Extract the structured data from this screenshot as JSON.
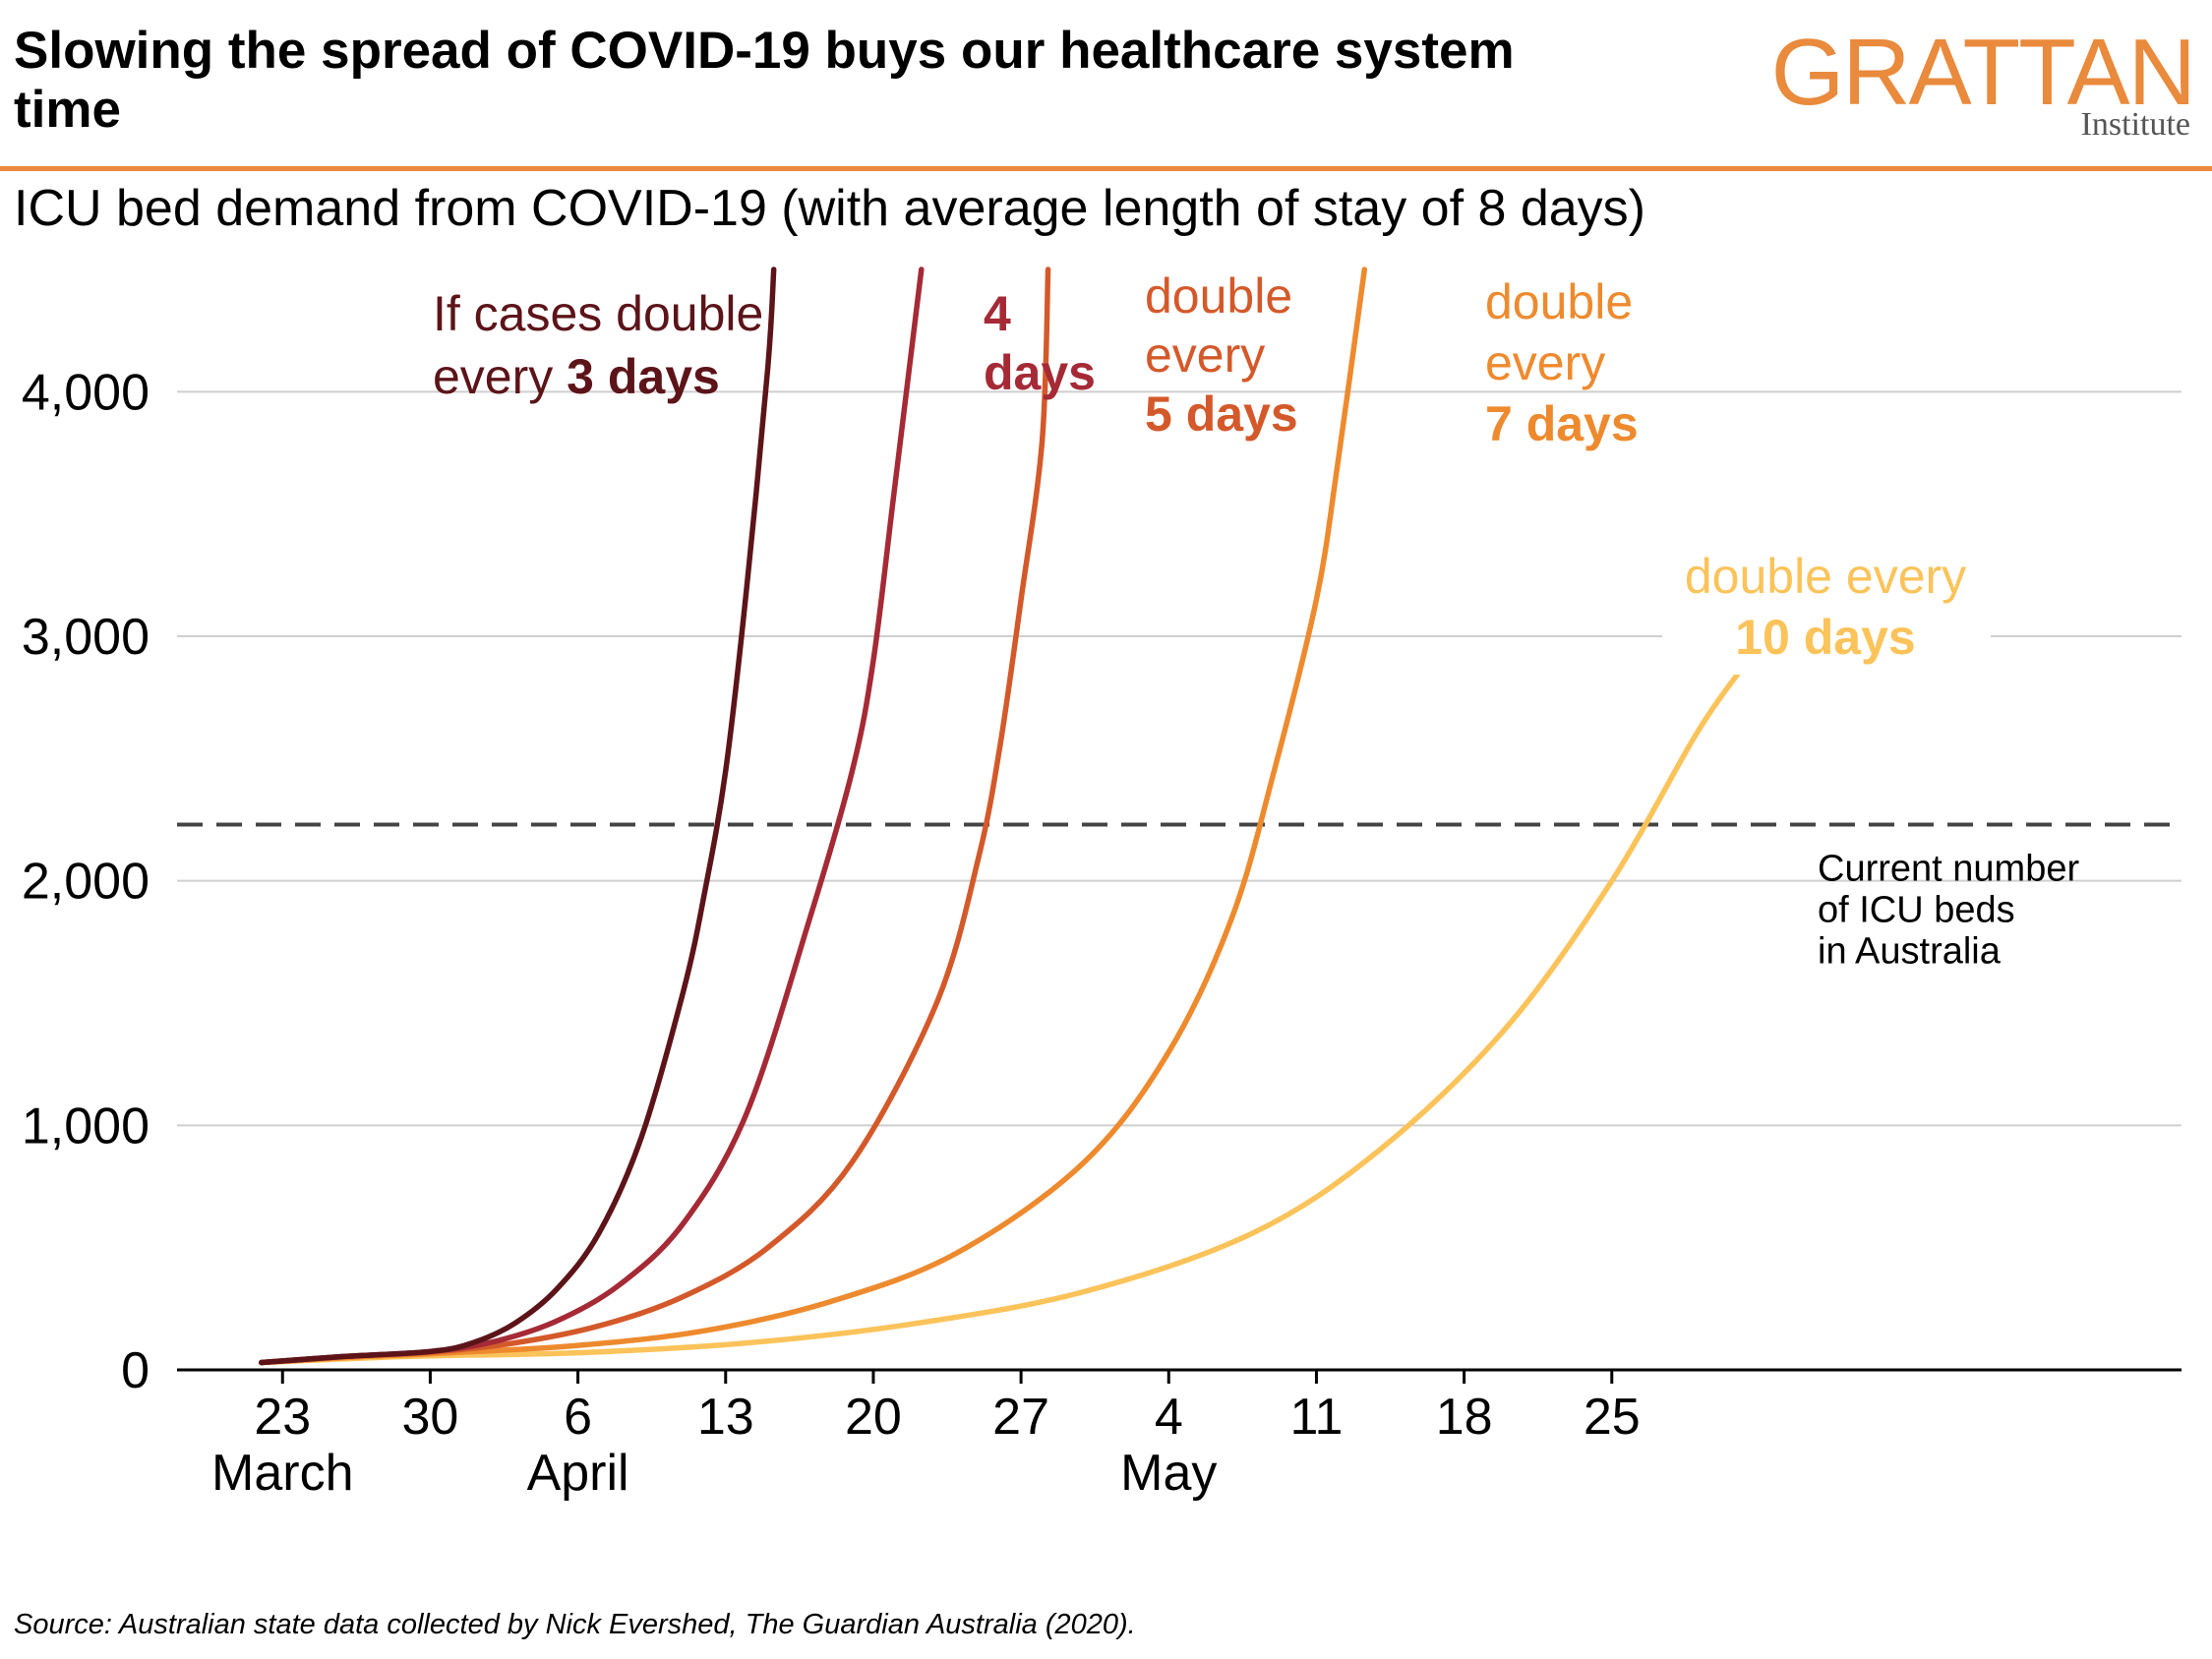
{
  "header": {
    "title": "Slowing the spread of COVID-19 buys our healthcare system time",
    "logo_main": "GRATTAN",
    "logo_sub": "Institute",
    "subtitle": "ICU bed demand from COVID-19 (with average length of stay of 8 days)",
    "accent_color": "#E98A3C"
  },
  "source": "Source: Australian state data collected by Nick Evershed, The Guardian Australia (2020).",
  "chart_data": {
    "type": "line",
    "title": "ICU bed demand from COVID-19 (with average length of stay of 8 days)",
    "xlabel": "",
    "ylabel": "",
    "x_range": [
      "2020-03-18",
      "2020-06-21"
    ],
    "ylim": [
      0,
      4500
    ],
    "y_ticks": [
      {
        "value": 0,
        "label": "0"
      },
      {
        "value": 1000,
        "label": "1,000"
      },
      {
        "value": 2000,
        "label": "2,000"
      },
      {
        "value": 3000,
        "label": "3,000"
      },
      {
        "value": 4000,
        "label": "4,000"
      }
    ],
    "x_ticks": [
      {
        "date": "2020-03-23",
        "label": "23"
      },
      {
        "date": "2020-03-30",
        "label": "30"
      },
      {
        "date": "2020-04-06",
        "label": "6"
      },
      {
        "date": "2020-04-13",
        "label": "13"
      },
      {
        "date": "2020-04-20",
        "label": "20"
      },
      {
        "date": "2020-04-27",
        "label": "27"
      },
      {
        "date": "2020-05-04",
        "label": "4"
      },
      {
        "date": "2020-05-11",
        "label": "11"
      },
      {
        "date": "2020-05-18",
        "label": "18"
      },
      {
        "date": "2020-05-25",
        "label": "25"
      }
    ],
    "month_labels": [
      {
        "date": "2020-03-23",
        "label": "March"
      },
      {
        "date": "2020-04-06",
        "label": "April"
      },
      {
        "date": "2020-05-04",
        "label": "May"
      }
    ],
    "grid": true,
    "reference_line": {
      "value": 2230,
      "label_lines": [
        "Current number",
        "of ICU beds",
        "in Australia"
      ],
      "color": "#444444"
    },
    "series": [
      {
        "label_parts": [
          [
            "If cases double",
            ""
          ],
          [
            "every ",
            "3 days"
          ]
        ],
        "color": "#5C1419",
        "points": [
          [
            "2020-03-22",
            30
          ],
          [
            "2020-03-26",
            55
          ],
          [
            "2020-03-30",
            75
          ],
          [
            "2020-04-01",
            110
          ],
          [
            "2020-04-03",
            190
          ],
          [
            "2020-04-05",
            330
          ],
          [
            "2020-04-07",
            560
          ],
          [
            "2020-04-09",
            950
          ],
          [
            "2020-04-11",
            1550
          ],
          [
            "2020-04-12",
            1950
          ],
          [
            "2020-04-13",
            2450
          ],
          [
            "2020-04-14",
            3200
          ],
          [
            "2020-04-15",
            4100
          ],
          [
            "2020-04-15",
            4500
          ]
        ]
      },
      {
        "label_parts": [
          [
            "4",
            "bold"
          ],
          [
            "days",
            "bold"
          ]
        ],
        "color": "#A52A35",
        "points": [
          [
            "2020-03-22",
            30
          ],
          [
            "2020-03-26",
            55
          ],
          [
            "2020-03-30",
            75
          ],
          [
            "2020-04-02",
            115
          ],
          [
            "2020-04-05",
            200
          ],
          [
            "2020-04-08",
            350
          ],
          [
            "2020-04-11",
            600
          ],
          [
            "2020-04-14",
            1050
          ],
          [
            "2020-04-17",
            1850
          ],
          [
            "2020-04-19",
            2450
          ],
          [
            "2020-04-20",
            2900
          ],
          [
            "2020-04-21",
            3600
          ],
          [
            "2020-04-22",
            4500
          ]
        ]
      },
      {
        "label_parts": [
          [
            "double",
            ""
          ],
          [
            "every",
            ""
          ],
          [
            "5 days",
            "bold"
          ]
        ],
        "color": "#D4592A",
        "points": [
          [
            "2020-03-22",
            30
          ],
          [
            "2020-03-26",
            55
          ],
          [
            "2020-03-30",
            72
          ],
          [
            "2020-04-03",
            110
          ],
          [
            "2020-04-07",
            180
          ],
          [
            "2020-04-11",
            300
          ],
          [
            "2020-04-15",
            500
          ],
          [
            "2020-04-19",
            850
          ],
          [
            "2020-04-23",
            1500
          ],
          [
            "2020-04-25",
            2100
          ],
          [
            "2020-04-26",
            2550
          ],
          [
            "2020-04-27",
            3150
          ],
          [
            "2020-04-28",
            3800
          ],
          [
            "2020-04-28",
            4500
          ]
        ]
      },
      {
        "label_parts": [
          [
            "double",
            ""
          ],
          [
            "every",
            ""
          ],
          [
            "7 days",
            "bold"
          ]
        ],
        "color": "#EE8A2E",
        "points": [
          [
            "2020-03-22",
            30
          ],
          [
            "2020-03-27",
            55
          ],
          [
            "2020-03-31",
            70
          ],
          [
            "2020-04-06",
            100
          ],
          [
            "2020-04-12",
            160
          ],
          [
            "2020-04-18",
            280
          ],
          [
            "2020-04-24",
            480
          ],
          [
            "2020-04-30",
            850
          ],
          [
            "2020-05-04",
            1300
          ],
          [
            "2020-05-07",
            1850
          ],
          [
            "2020-05-09",
            2450
          ],
          [
            "2020-05-11",
            3150
          ],
          [
            "2020-05-12",
            3700
          ],
          [
            "2020-05-13",
            4500
          ]
        ]
      },
      {
        "label_parts": [
          [
            "double every",
            ""
          ],
          [
            "10 days",
            "bold"
          ]
        ],
        "color": "#FBC35A",
        "points": [
          [
            "2020-03-22",
            30
          ],
          [
            "2020-03-29",
            55
          ],
          [
            "2020-04-06",
            70
          ],
          [
            "2020-04-14",
            110
          ],
          [
            "2020-04-22",
            190
          ],
          [
            "2020-04-30",
            320
          ],
          [
            "2020-05-08",
            560
          ],
          [
            "2020-05-14",
            900
          ],
          [
            "2020-05-20",
            1400
          ],
          [
            "2020-05-25",
            2000
          ],
          [
            "2020-05-29",
            2600
          ],
          [
            "2020-05-31",
            2850
          ]
        ]
      }
    ]
  }
}
